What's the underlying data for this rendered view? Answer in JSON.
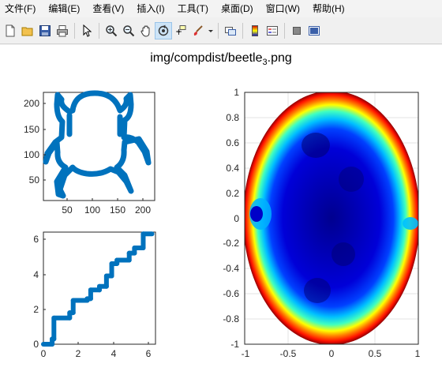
{
  "menu": {
    "items": [
      "文件(F)",
      "编辑(E)",
      "查看(V)",
      "插入(I)",
      "工具(T)",
      "桌面(D)",
      "窗口(W)",
      "帮助(H)"
    ]
  },
  "toolbar": {
    "buttons": [
      "new-figure-icon",
      "open-file-icon",
      "save-icon",
      "print-icon",
      "pointer-icon",
      "zoom-in-icon",
      "zoom-out-icon",
      "pan-icon",
      "rotate-3d-icon",
      "data-cursor-icon",
      "brush-icon",
      "link-plot-icon",
      "colorbar-icon",
      "legend-icon",
      "hide-plot-tools-icon",
      "show-plot-tools-icon"
    ]
  },
  "figure": {
    "title_main": "img/compdist/beetle",
    "title_sub": "3",
    "title_ext": ".png"
  },
  "chart_data": [
    {
      "type": "line",
      "description_of_marks": "beetle contour outline",
      "xlim": [
        5,
        222
      ],
      "ylim": [
        20,
        225
      ],
      "xticks": [
        "50",
        "100",
        "150",
        "200"
      ],
      "yticks": [
        "50",
        "100",
        "150",
        "200"
      ],
      "color": "#0072bd"
    },
    {
      "type": "line",
      "xlim": [
        0,
        6.4
      ],
      "ylim": [
        0,
        6.4
      ],
      "xticks": [
        "0",
        "2",
        "4",
        "6"
      ],
      "yticks": [
        "0",
        "2",
        "4",
        "6"
      ],
      "x": [
        0,
        0.5,
        0.5,
        0.6,
        0.6,
        1.5,
        1.5,
        1.7,
        1.7,
        2.5,
        2.5,
        2.7,
        2.7,
        3.2,
        3.2,
        3.6,
        3.6,
        3.9,
        3.9,
        4.2,
        4.2,
        4.9,
        4.9,
        5.2,
        5.2,
        5.7,
        5.7,
        6.2
      ],
      "y": [
        0,
        0,
        0.3,
        0.3,
        1.5,
        1.5,
        1.8,
        1.8,
        2.5,
        2.5,
        2.6,
        2.6,
        3.1,
        3.1,
        3.3,
        3.3,
        3.9,
        3.9,
        4.6,
        4.6,
        4.8,
        4.8,
        5.2,
        5.2,
        5.5,
        5.5,
        6.3,
        6.3
      ],
      "color": "#0072bd"
    },
    {
      "type": "heatmap",
      "description_of_marks": "elliptical colour map, jet colormap, dark blue interior, red rim",
      "xlim": [
        -1,
        1
      ],
      "ylim": [
        -1,
        1
      ],
      "xticks": [
        "-1",
        "-0.5",
        "0",
        "0.5",
        "1"
      ],
      "yticks": [
        "-1",
        "-0.8",
        "-0.6",
        "-0.4",
        "-0.2",
        "0",
        "0.2",
        "0.4",
        "0.6",
        "0.8",
        "1"
      ],
      "grid": true
    }
  ]
}
